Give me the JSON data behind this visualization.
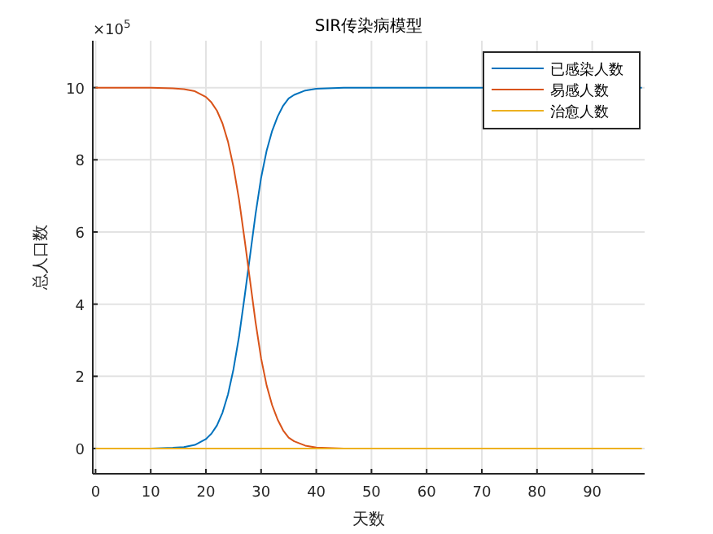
{
  "chart_data": {
    "type": "line",
    "title": "SIR传染病模型",
    "xlabel": "天数",
    "ylabel": "总人口数",
    "annotations": [
      "×10$^{5}$"
    ],
    "xlim": [
      -0.5,
      99.5
    ],
    "ylim": [
      -0.7,
      11.3
    ],
    "xticks": [
      0,
      10,
      20,
      30,
      40,
      50,
      60,
      70,
      80,
      90
    ],
    "yticks": [
      0,
      2,
      4,
      6,
      8,
      10
    ],
    "grid": true,
    "legend": "top right",
    "series": [
      {
        "name": "已感染人数",
        "color": "#0072bd",
        "x": [
          0,
          5,
          10,
          14,
          16,
          18,
          20,
          21,
          22,
          23,
          24,
          25,
          26,
          27,
          28,
          29,
          30,
          31,
          32,
          33,
          34,
          35,
          36,
          38,
          40,
          45,
          50,
          60,
          70,
          99
        ],
        "values": [
          0,
          0,
          0,
          0.02,
          0.04,
          0.1,
          0.26,
          0.41,
          0.64,
          0.99,
          1.5,
          2.2,
          3.1,
          4.2,
          5.35,
          6.5,
          7.5,
          8.25,
          8.8,
          9.2,
          9.5,
          9.7,
          9.8,
          9.92,
          9.97,
          10,
          10,
          10,
          10,
          10
        ]
      },
      {
        "name": "易感人数",
        "color": "#d95319",
        "x": [
          0,
          5,
          10,
          14,
          16,
          18,
          20,
          21,
          22,
          23,
          24,
          25,
          26,
          27,
          28,
          29,
          30,
          31,
          32,
          33,
          34,
          35,
          36,
          38,
          40,
          45,
          50
        ],
        "values": [
          10,
          10,
          10,
          9.98,
          9.96,
          9.9,
          9.74,
          9.59,
          9.36,
          9.01,
          8.5,
          7.8,
          6.9,
          5.8,
          4.65,
          3.5,
          2.5,
          1.75,
          1.2,
          0.8,
          0.5,
          0.3,
          0.2,
          0.08,
          0.03,
          0,
          0
        ]
      },
      {
        "name": "治愈人数",
        "color": "#edb120",
        "x": [
          0,
          25,
          50,
          75,
          99
        ],
        "values": [
          0,
          0,
          0,
          0,
          0
        ]
      }
    ]
  }
}
